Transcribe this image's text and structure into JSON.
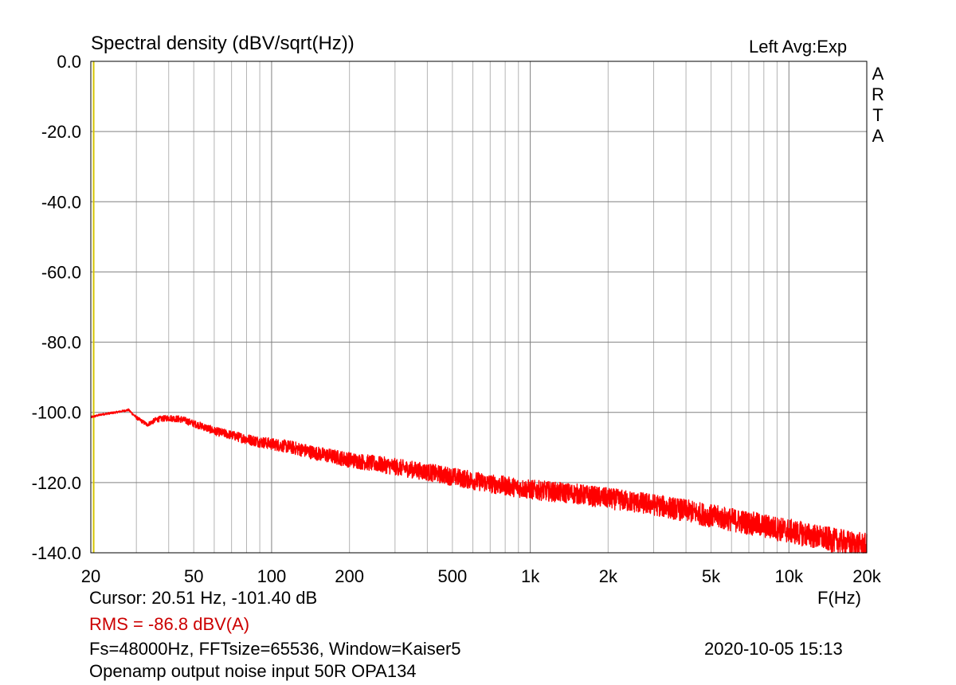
{
  "header": {
    "title": "Spectral density (dBV/sqrt(Hz))",
    "right": "Left  Avg:Exp",
    "brand": [
      "A",
      "R",
      "T",
      "A"
    ]
  },
  "footer": {
    "cursor": "Cursor: 20.51 Hz, -101.40 dB",
    "rms": "RMS =  -86.8 dBV(A)",
    "fs_info": "Fs=48000Hz, FFTsize=65536, Window=Kaiser5",
    "timestamp": "2020-10-05  15:13",
    "description": "Openamp output noise input 50R OPA134"
  },
  "colors": {
    "trace": "#ff0000",
    "grid": "#b4b4b4",
    "grid_major": "#808080",
    "cursor": "#d4c400",
    "rms_text": "#cc0000"
  },
  "chart_data": {
    "type": "line",
    "title": "Spectral density (dBV/sqrt(Hz))",
    "xlabel": "F(Hz)",
    "ylabel": "",
    "xscale": "log",
    "xlim": [
      20,
      20000
    ],
    "ylim": [
      -140,
      0
    ],
    "grid": true,
    "y_ticks": [
      0,
      -20,
      -40,
      -60,
      -80,
      -100,
      -120,
      -140
    ],
    "y_tick_labels": [
      "0.0",
      "-20.0",
      "-40.0",
      "-60.0",
      "-80.0",
      "-100.0",
      "-120.0",
      "-140.0"
    ],
    "x_ticks": [
      20,
      50,
      100,
      200,
      500,
      1000,
      2000,
      5000,
      10000,
      20000
    ],
    "x_tick_labels": [
      "20",
      "50",
      "100",
      "200",
      "500",
      "1k",
      "2k",
      "5k",
      "10k",
      "20k"
    ],
    "cursor_x": 20.51,
    "series": [
      {
        "color": "#ff0000",
        "x": [
          20,
          22,
          25,
          28,
          30,
          33,
          36,
          40,
          45,
          50,
          55,
          60,
          70,
          80,
          90,
          100,
          110,
          120,
          150,
          200,
          300,
          400,
          500,
          700,
          1000,
          1500,
          2000,
          3000,
          4000,
          5000,
          7000,
          10000,
          15000,
          20000
        ],
        "y": [
          -101.4,
          -100.6,
          -100.0,
          -99.3,
          -101.5,
          -103.5,
          -102.0,
          -101.6,
          -102.0,
          -103.2,
          -104.2,
          -105.3,
          -106.5,
          -107.6,
          -108.4,
          -109.0,
          -109.5,
          -110.0,
          -111.7,
          -113.5,
          -115.5,
          -117.0,
          -118.3,
          -120.3,
          -122.0,
          -123.2,
          -124.5,
          -126.3,
          -128.0,
          -129.5,
          -131.5,
          -133.8,
          -136.5,
          -138.0
        ],
        "spread": [
          0.3,
          0.3,
          0.3,
          0.3,
          0.5,
          0.6,
          0.8,
          0.9,
          1.0,
          1.0,
          1.1,
          1.2,
          1.3,
          1.5,
          1.6,
          1.7,
          1.8,
          1.9,
          2.0,
          2.2,
          2.4,
          2.5,
          2.6,
          2.7,
          2.8,
          2.9,
          3.0,
          3.1,
          3.2,
          3.3,
          3.4,
          3.5,
          3.5,
          3.5
        ]
      }
    ]
  }
}
